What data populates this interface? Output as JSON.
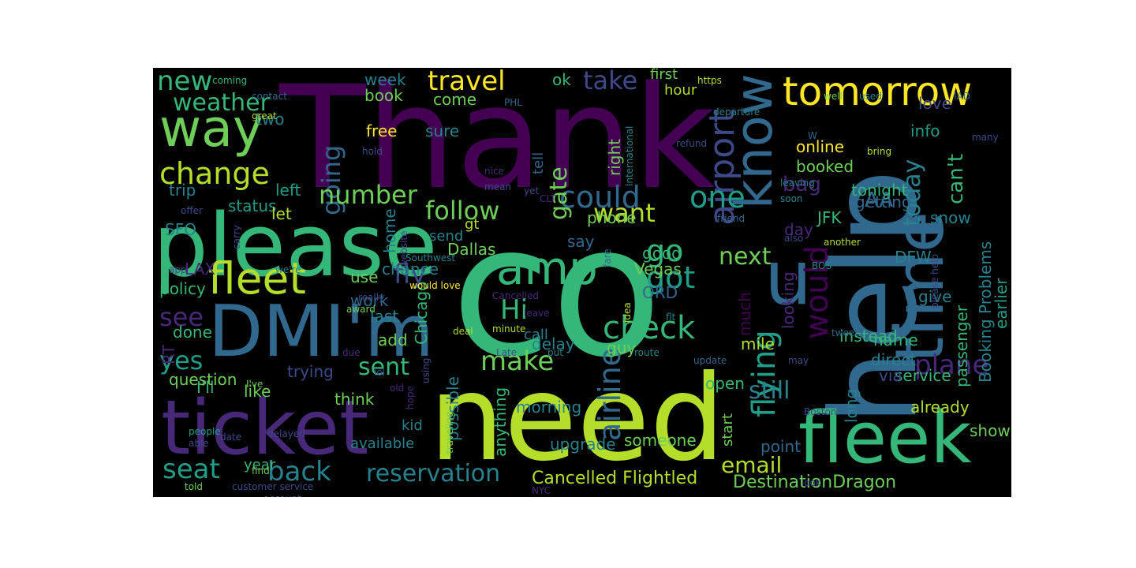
{
  "background": "#000000",
  "palette": {
    "purple": "#440154",
    "indigo": "#482878",
    "blue": "#3e4989",
    "steel": "#31688e",
    "teal": "#26828e",
    "cyan": "#1f9e89",
    "green": "#35b779",
    "lime": "#6ece58",
    "yellowgreen": "#b5de2b",
    "yellow": "#fde725"
  },
  "words": [
    {
      "text": "Thank",
      "color": "#440154"
    },
    {
      "text": "co",
      "color": "#35b779"
    },
    {
      "text": "need",
      "color": "#b5de2b"
    },
    {
      "text": "help",
      "color": "#31688e"
    },
    {
      "text": "please",
      "color": "#35b779"
    },
    {
      "text": "ticket",
      "color": "#482878"
    },
    {
      "text": "DMI'm",
      "color": "#31688e"
    },
    {
      "text": "fleek",
      "color": "#35b779"
    },
    {
      "text": "time",
      "color": "#31688e"
    },
    {
      "text": "u",
      "color": "#31688e"
    },
    {
      "text": "know",
      "color": "#31688e"
    },
    {
      "text": "tomorrow",
      "color": "#fde725"
    },
    {
      "text": "way",
      "color": "#6ece58"
    },
    {
      "text": "fleet",
      "color": "#b5de2b"
    },
    {
      "text": "amp",
      "color": "#35b779"
    },
    {
      "text": "change",
      "color": "#b5de2b"
    },
    {
      "text": "would",
      "color": "#440154"
    },
    {
      "text": "check",
      "color": "#35b779"
    },
    {
      "text": "flying",
      "color": "#1f9e89"
    },
    {
      "text": "plane",
      "color": "#482878"
    },
    {
      "text": "airport",
      "color": "#3e4989"
    },
    {
      "text": "airline",
      "color": "#31688e"
    },
    {
      "text": "could",
      "color": "#31688e"
    },
    {
      "text": "back",
      "color": "#26828e"
    },
    {
      "text": "seat",
      "color": "#1f9e89"
    },
    {
      "text": "reservation",
      "color": "#26828e"
    },
    {
      "text": "make",
      "color": "#6ece58"
    },
    {
      "text": "email",
      "color": "#b5de2b"
    },
    {
      "text": "travel",
      "color": "#fde725"
    },
    {
      "text": "new",
      "color": "#35b779"
    },
    {
      "text": "weather",
      "color": "#35b779"
    },
    {
      "text": "go",
      "color": "#35b779"
    },
    {
      "text": "one",
      "color": "#1f9e89"
    },
    {
      "text": "got",
      "color": "#1f9e89"
    },
    {
      "text": "Hi",
      "color": "#35b779"
    },
    {
      "text": "fly",
      "color": "#3e4989"
    },
    {
      "text": "see",
      "color": "#482878"
    },
    {
      "text": "yes",
      "color": "#1f9e89"
    },
    {
      "text": "going",
      "color": "#31688e"
    },
    {
      "text": "number",
      "color": "#6ece58"
    },
    {
      "text": "follow",
      "color": "#6ece58"
    },
    {
      "text": "want",
      "color": "#b5de2b"
    },
    {
      "text": "next",
      "color": "#6ece58"
    },
    {
      "text": "sent",
      "color": "#35b779"
    },
    {
      "text": "take",
      "color": "#3e4989"
    },
    {
      "text": "bag",
      "color": "#482878"
    },
    {
      "text": "AA",
      "color": "#31688e"
    },
    {
      "text": "today",
      "color": "#26828e"
    },
    {
      "text": "can't",
      "color": "#35b779"
    },
    {
      "text": "gate",
      "color": "#6ece58"
    },
    {
      "text": "still",
      "color": "#26828e"
    },
    {
      "text": "Cancelled Flightled",
      "color": "#b5de2b"
    },
    {
      "text": "DestinationDragon",
      "color": "#6ece58"
    },
    {
      "text": "service",
      "color": "#35b779"
    },
    {
      "text": "already",
      "color": "#b5de2b"
    },
    {
      "text": "Booking Problems",
      "color": "#26828e"
    },
    {
      "text": "earlier",
      "color": "#1f9e89"
    },
    {
      "text": "passenger",
      "color": "#35b779"
    },
    {
      "text": "online",
      "color": "#fde725"
    },
    {
      "text": "booked",
      "color": "#6ece58"
    },
    {
      "text": "tonight",
      "color": "#35b779"
    },
    {
      "text": "info",
      "color": "#1f9e89"
    },
    {
      "text": "love",
      "color": "#3e4989"
    },
    {
      "text": "snow",
      "color": "#26828e"
    },
    {
      "text": "getting",
      "color": "#31688e"
    },
    {
      "text": "JFK",
      "color": "#35b779"
    },
    {
      "text": "day",
      "color": "#482878"
    },
    {
      "text": "looking",
      "color": "#482878"
    },
    {
      "text": "instead",
      "color": "#35b779"
    },
    {
      "text": "direct",
      "color": "#26828e"
    },
    {
      "text": "via",
      "color": "#3e4989"
    },
    {
      "text": "name",
      "color": "#35b779"
    },
    {
      "text": "give",
      "color": "#26828e"
    },
    {
      "text": "DFW",
      "color": "#26828e"
    },
    {
      "text": "long",
      "color": "#26828e"
    },
    {
      "text": "point",
      "color": "#31688e"
    },
    {
      "text": "show",
      "color": "#6ece58"
    },
    {
      "text": "first",
      "color": "#6ece58"
    },
    {
      "text": "hour",
      "color": "#b5de2b"
    },
    {
      "text": "right",
      "color": "#6ece58"
    },
    {
      "text": "much",
      "color": "#440154"
    },
    {
      "text": "mile",
      "color": "#b5de2b"
    },
    {
      "text": "guy",
      "color": "#6ece58"
    },
    {
      "text": "delay",
      "color": "#26828e"
    },
    {
      "text": "open",
      "color": "#35b779"
    },
    {
      "text": "call",
      "color": "#26828e"
    },
    {
      "text": "phone",
      "color": "#6ece58"
    },
    {
      "text": "say",
      "color": "#31688e"
    },
    {
      "text": "good",
      "color": "#35b779"
    },
    {
      "text": "Vegas",
      "color": "#6ece58"
    },
    {
      "text": "ORD",
      "color": "#31688e"
    },
    {
      "text": "Dallas",
      "color": "#6ece58"
    },
    {
      "text": "Chicago",
      "color": "#35b779"
    },
    {
      "text": "home",
      "color": "#26828e"
    },
    {
      "text": "chance",
      "color": "#26828e"
    },
    {
      "text": "use",
      "color": "#6ece58"
    },
    {
      "text": "work",
      "color": "#31688e"
    },
    {
      "text": "last",
      "color": "#26828e"
    },
    {
      "text": "add",
      "color": "#6ece58"
    },
    {
      "text": "trying",
      "color": "#3e4989"
    },
    {
      "text": "think",
      "color": "#6ece58"
    },
    {
      "text": "like",
      "color": "#6ece58"
    },
    {
      "text": "I'll",
      "color": "#35b779"
    },
    {
      "text": "question",
      "color": "#6ece58"
    },
    {
      "text": "done",
      "color": "#35b779"
    },
    {
      "text": "RT",
      "color": "#482878"
    },
    {
      "text": "policy",
      "color": "#35b779"
    },
    {
      "text": "LAX",
      "color": "#482878"
    },
    {
      "text": "status",
      "color": "#1f9e89"
    },
    {
      "text": "trip",
      "color": "#26828e"
    },
    {
      "text": "left",
      "color": "#1f9e89"
    },
    {
      "text": "let",
      "color": "#b5de2b"
    },
    {
      "text": "SFO",
      "color": "#26828e"
    },
    {
      "text": "two",
      "color": "#26828e"
    },
    {
      "text": "free",
      "color": "#fde725"
    },
    {
      "text": "sure",
      "color": "#26828e"
    },
    {
      "text": "week",
      "color": "#26828e"
    },
    {
      "text": "book",
      "color": "#6ece58"
    },
    {
      "text": "come",
      "color": "#6ece58"
    },
    {
      "text": "ok",
      "color": "#35b779"
    },
    {
      "text": "tell",
      "color": "#31688e"
    },
    {
      "text": "send",
      "color": "#26828e"
    },
    {
      "text": "gt",
      "color": "#b5de2b"
    },
    {
      "text": "possible",
      "color": "#26828e"
    },
    {
      "text": "anything",
      "color": "#35b779"
    },
    {
      "text": "morning",
      "color": "#26828e"
    },
    {
      "text": "kid",
      "color": "#26828e"
    },
    {
      "text": "upgrade",
      "color": "#26828e"
    },
    {
      "text": "someone",
      "color": "#6ece58"
    },
    {
      "text": "year",
      "color": "#35b779"
    },
    {
      "text": "available",
      "color": "#26828e"
    },
    {
      "text": "start",
      "color": "#6ece58"
    },
    {
      "text": "coming",
      "color": "#35b779"
    },
    {
      "text": "https",
      "color": "#b5de2b"
    },
    {
      "text": "contact",
      "color": "#31688e"
    },
    {
      "text": "great",
      "color": "#b5de2b"
    },
    {
      "text": "PHL",
      "color": "#31688e"
    },
    {
      "text": "international",
      "color": "#26828e"
    },
    {
      "text": "departure",
      "color": "#26828e"
    },
    {
      "text": "well",
      "color": "#6ece58"
    },
    {
      "text": "used",
      "color": "#26828e"
    },
    {
      "text": "IAD",
      "color": "#31688e"
    },
    {
      "text": "many",
      "color": "#3e4989"
    },
    {
      "text": "W",
      "color": "#31688e"
    },
    {
      "text": "bring",
      "color": "#b5de2b"
    },
    {
      "text": "refund",
      "color": "#3e4989"
    },
    {
      "text": "hold",
      "color": "#3e4989"
    },
    {
      "text": "nice",
      "color": "#482878"
    },
    {
      "text": "mean",
      "color": "#3e4989"
    },
    {
      "text": "yet",
      "color": "#3e4989"
    },
    {
      "text": "leaving",
      "color": "#26828e"
    },
    {
      "text": "soon",
      "color": "#26828e"
    },
    {
      "text": "friend",
      "color": "#31688e"
    },
    {
      "text": "also",
      "color": "#3e4989"
    },
    {
      "text": "another",
      "color": "#b5de2b"
    },
    {
      "text": "please help",
      "color": "#3e4989"
    },
    {
      "text": "BOS",
      "color": "#26828e"
    },
    {
      "text": "CLT",
      "color": "#482878"
    },
    {
      "text": "offer",
      "color": "#3e4989"
    },
    {
      "text": "carry",
      "color": "#3e4989"
    },
    {
      "text": "website",
      "color": "#3e4989"
    },
    {
      "text": "app",
      "color": "#3e4989"
    },
    {
      "text": "we're",
      "color": "#26828e"
    },
    {
      "text": "really",
      "color": "#3e4989"
    },
    {
      "text": "award",
      "color": "#6ece58"
    },
    {
      "text": "would love",
      "color": "#fde725"
    },
    {
      "text": "Cancelled",
      "color": "#482878"
    },
    {
      "text": "minute",
      "color": "#b5de2b"
    },
    {
      "text": "fare",
      "color": "#31688e"
    },
    {
      "text": "Southwest",
      "color": "#26828e"
    },
    {
      "text": "leave",
      "color": "#482878"
    },
    {
      "text": "deal",
      "color": "#b5de2b"
    },
    {
      "text": "flt",
      "color": "#26828e"
    },
    {
      "text": "idea",
      "color": "#b5de2b"
    },
    {
      "text": "air",
      "color": "#31688e"
    },
    {
      "text": "tweet",
      "color": "#31688e"
    },
    {
      "text": "may",
      "color": "#3e4989"
    },
    {
      "text": "update",
      "color": "#31688e"
    },
    {
      "text": "route",
      "color": "#26828e"
    },
    {
      "text": "put",
      "color": "#26828e"
    },
    {
      "text": "Late",
      "color": "#3e4989"
    },
    {
      "text": "due",
      "color": "#482878"
    },
    {
      "text": "using",
      "color": "#3e4989"
    },
    {
      "text": "lol",
      "color": "#3e4989"
    },
    {
      "text": "old",
      "color": "#482878"
    },
    {
      "text": "hope",
      "color": "#482878"
    },
    {
      "text": "traveling",
      "color": "#6ece58"
    },
    {
      "text": "Boston",
      "color": "#3e4989"
    },
    {
      "text": "I've",
      "color": "#6ece58"
    },
    {
      "text": "people",
      "color": "#1f9e89"
    },
    {
      "text": "able",
      "color": "#3e4989"
    },
    {
      "text": "date",
      "color": "#3e4989"
    },
    {
      "text": "delayed",
      "color": "#3e4989"
    },
    {
      "text": "find",
      "color": "#6ece58"
    },
    {
      "text": "account",
      "color": "#3e4989"
    },
    {
      "text": "told",
      "color": "#6ece58"
    },
    {
      "text": "customer service",
      "color": "#3e4989"
    },
    {
      "text": "NYC",
      "color": "#482878"
    },
    {
      "text": "look",
      "color": "#3e4989"
    }
  ]
}
